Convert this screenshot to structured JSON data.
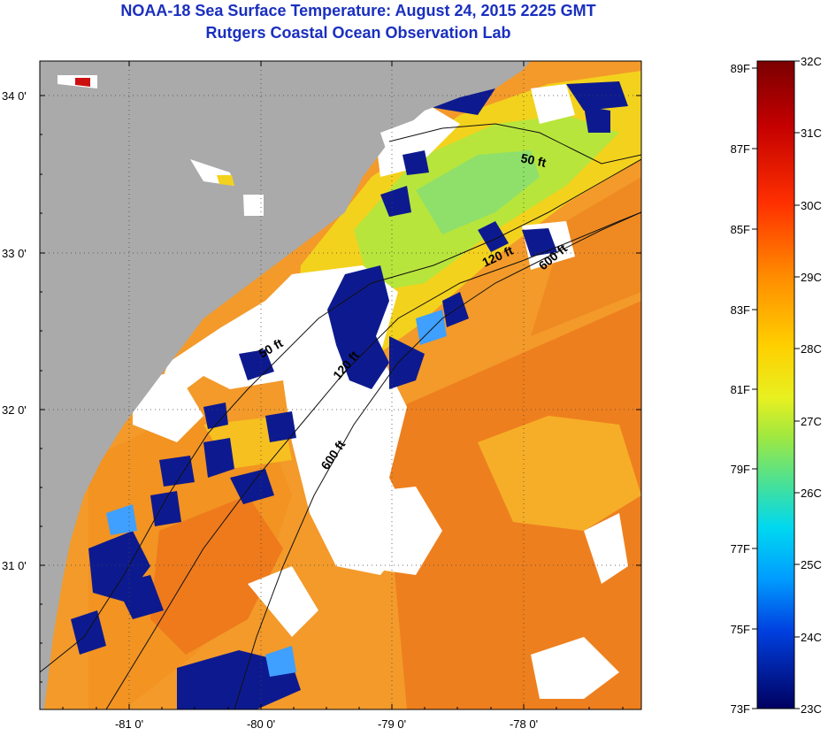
{
  "title": "NOAA-18 Sea Surface Temperature:  August 24, 2015 2225 GMT",
  "subtitle": "Rutgers Coastal Ocean Observation Lab",
  "map": {
    "lat_labels": [
      "34 0'",
      "33 0'",
      "32 0'",
      "31 0'"
    ],
    "lon_labels": [
      "-81 0'",
      "-80 0'",
      "-79 0'",
      "-78 0'"
    ],
    "contour_labels": [
      "50 ft",
      "120 ft",
      "600 ft",
      "50 ft",
      "120 ft",
      "600 ft"
    ],
    "colors": {
      "land": "#aaaaaa",
      "cloud": "#ffffff",
      "warm": "#f08a1c",
      "mid": "#f6c81a",
      "cool": "#9be34a",
      "cold": "#0a1a8c"
    }
  },
  "colorbar": {
    "fahrenheit_labels": [
      "89F",
      "87F",
      "85F",
      "83F",
      "81F",
      "79F",
      "77F",
      "75F",
      "73F"
    ],
    "celsius_labels": [
      "32C",
      "31C",
      "30C",
      "29C",
      "28C",
      "27C",
      "26C",
      "25C",
      "24C",
      "23C"
    ],
    "range_c": [
      23,
      32
    ],
    "range_f": [
      73,
      89
    ]
  }
}
